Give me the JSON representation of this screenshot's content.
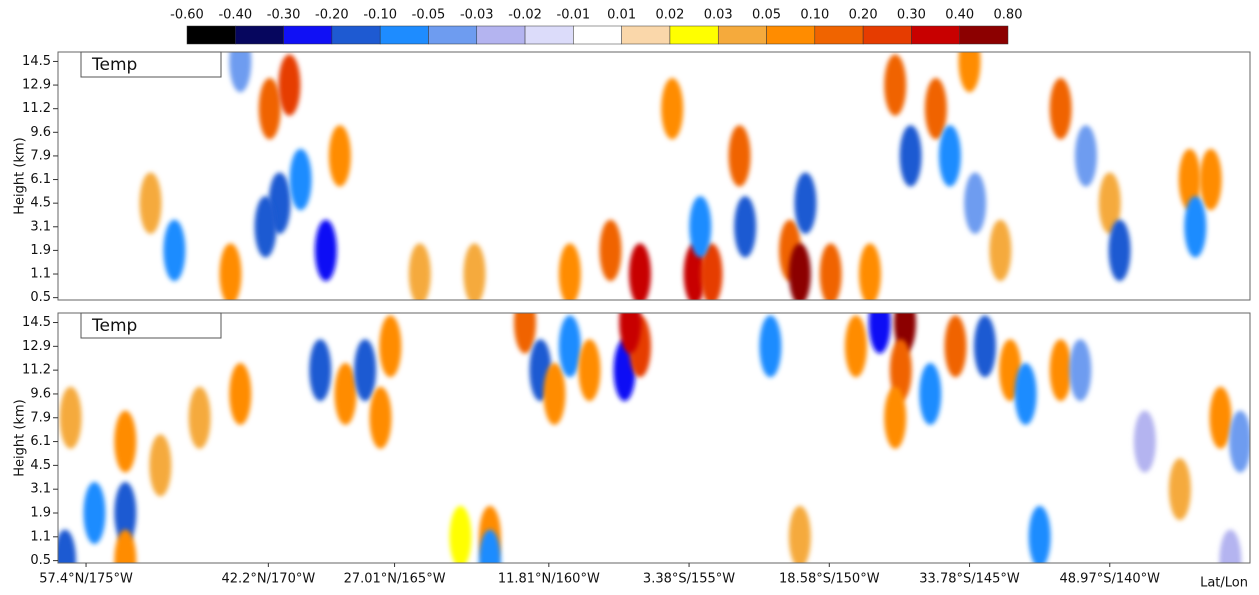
{
  "chart_data": [
    {
      "type": "contour",
      "label": "Temp",
      "ylabel": "Height (km)",
      "xlim": [
        0,
        8.5
      ],
      "ylim": [
        -0.1,
        10.4
      ],
      "yticks": [
        {
          "value": 0,
          "label": "0.5"
        },
        {
          "value": 1,
          "label": "1.1"
        },
        {
          "value": 2,
          "label": "1.9"
        },
        {
          "value": 3,
          "label": "3.1"
        },
        {
          "value": 4,
          "label": "4.5"
        },
        {
          "value": 5,
          "label": "6.1"
        },
        {
          "value": 6,
          "label": "7.9"
        },
        {
          "value": 7,
          "label": "9.6"
        },
        {
          "value": 8,
          "label": "11.2"
        },
        {
          "value": 9,
          "label": "12.9"
        },
        {
          "value": 10,
          "label": "14.5"
        }
      ],
      "colorbar": {
        "levels": [
          {
            "value": -0.6,
            "label": "-0.60"
          },
          {
            "value": -0.4,
            "label": "-0.40"
          },
          {
            "value": -0.3,
            "label": "-0.30"
          },
          {
            "value": -0.2,
            "label": "-0.20"
          },
          {
            "value": -0.1,
            "label": "-0.10"
          },
          {
            "value": -0.05,
            "label": "-0.05"
          },
          {
            "value": -0.03,
            "label": "-0.03"
          },
          {
            "value": -0.02,
            "label": "-0.02"
          },
          {
            "value": -0.01,
            "label": "-0.01"
          },
          {
            "value": 0.01,
            "label": "0.01"
          },
          {
            "value": 0.02,
            "label": "0.02"
          },
          {
            "value": 0.03,
            "label": "0.03"
          },
          {
            "value": 0.05,
            "label": "0.05"
          },
          {
            "value": 0.1,
            "label": "0.10"
          },
          {
            "value": 0.2,
            "label": "0.20"
          },
          {
            "value": 0.3,
            "label": "0.30"
          },
          {
            "value": 0.4,
            "label": "0.40"
          },
          {
            "value": 0.8,
            "label": "0.80"
          }
        ],
        "colors": [
          "#000000",
          "#06065e",
          "#1010f5",
          "#1e5ad2",
          "#1e8cff",
          "#6e9cf0",
          "#b4b4f0",
          "#dcdcfa",
          "#ffffff",
          "#fad7aa",
          "#ffff00",
          "#f5aa3c",
          "#ff8c00",
          "#f06400",
          "#e63c00",
          "#c80000",
          "#8c0000",
          "#500000"
        ]
      },
      "cells": [
        [
          0.66,
          4,
          0.04
        ],
        [
          0.83,
          2,
          -0.1
        ],
        [
          1.23,
          1,
          0.07
        ],
        [
          1.51,
          8,
          0.12
        ],
        [
          1.65,
          9,
          0.2
        ],
        [
          1.58,
          4,
          -0.2
        ],
        [
          1.48,
          3,
          -0.12
        ],
        [
          1.73,
          5,
          -0.08
        ],
        [
          1.91,
          2,
          -0.25
        ],
        [
          2.01,
          6,
          0.08
        ],
        [
          1.3,
          10,
          -0.04
        ],
        [
          2.58,
          1,
          0.03
        ],
        [
          2.97,
          1,
          0.04
        ],
        [
          3.65,
          1,
          0.08
        ],
        [
          3.94,
          2,
          0.12
        ],
        [
          4.15,
          1,
          0.3
        ],
        [
          4.38,
          8,
          0.07
        ],
        [
          4.54,
          1,
          0.35
        ],
        [
          4.66,
          1,
          0.2
        ],
        [
          4.58,
          3,
          -0.1
        ],
        [
          4.86,
          6,
          0.1
        ],
        [
          4.9,
          3,
          -0.15
        ],
        [
          5.22,
          2,
          0.1
        ],
        [
          5.29,
          1,
          0.45
        ],
        [
          5.33,
          4,
          -0.15
        ],
        [
          5.51,
          1,
          0.15
        ],
        [
          5.79,
          1,
          0.08
        ],
        [
          5.97,
          9,
          0.12
        ],
        [
          6.08,
          6,
          -0.15
        ],
        [
          6.26,
          8,
          0.15
        ],
        [
          6.36,
          6,
          -0.06
        ],
        [
          6.5,
          10,
          0.08
        ],
        [
          6.54,
          4,
          -0.05
        ],
        [
          6.72,
          2,
          0.04
        ],
        [
          7.15,
          8,
          0.1
        ],
        [
          7.33,
          6,
          -0.05
        ],
        [
          7.5,
          4,
          0.04
        ],
        [
          7.57,
          2,
          -0.2
        ],
        [
          8.07,
          5,
          0.08
        ],
        [
          8.22,
          5,
          0.07
        ],
        [
          8.11,
          3,
          -0.1
        ]
      ]
    },
    {
      "type": "contour",
      "label": "Temp",
      "ylabel": "Height (km)",
      "xlabel": "Lat/Lon",
      "xlim": [
        0,
        8.5
      ],
      "ylim": [
        -0.1,
        10.4
      ],
      "xticks": [
        {
          "value": 0.2,
          "label": "57.4°N/175°W"
        },
        {
          "value": 1.5,
          "label": "42.2°N/170°W"
        },
        {
          "value": 2.4,
          "label": "27.01°N/165°W"
        },
        {
          "value": 3.5,
          "label": "11.81°N/160°W"
        },
        {
          "value": 4.5,
          "label": "3.38°S/155°W"
        },
        {
          "value": 5.5,
          "label": "18.58°S/150°W"
        },
        {
          "value": 6.5,
          "label": "33.78°S/145°W"
        },
        {
          "value": 7.5,
          "label": "48.97°S/140°W"
        }
      ],
      "yticks": [
        {
          "value": 0,
          "label": "0.5"
        },
        {
          "value": 1,
          "label": "1.1"
        },
        {
          "value": 2,
          "label": "1.9"
        },
        {
          "value": 3,
          "label": "3.1"
        },
        {
          "value": 4,
          "label": "4.5"
        },
        {
          "value": 5,
          "label": "6.1"
        },
        {
          "value": 6,
          "label": "7.9"
        },
        {
          "value": 7,
          "label": "9.6"
        },
        {
          "value": 8,
          "label": "11.2"
        },
        {
          "value": 9,
          "label": "12.9"
        },
        {
          "value": 10,
          "label": "14.5"
        }
      ],
      "cells": [
        [
          0.09,
          6,
          0.04
        ],
        [
          0.05,
          0,
          -0.15
        ],
        [
          0.26,
          2,
          -0.1
        ],
        [
          0.48,
          2,
          -0.15
        ],
        [
          0.48,
          5,
          0.06
        ],
        [
          0.48,
          0,
          0.08
        ],
        [
          0.73,
          4,
          0.03
        ],
        [
          1.01,
          6,
          0.04
        ],
        [
          1.3,
          7,
          0.05
        ],
        [
          1.87,
          8,
          -0.15
        ],
        [
          2.05,
          7,
          0.08
        ],
        [
          2.19,
          8,
          -0.2
        ],
        [
          2.3,
          6,
          0.05
        ],
        [
          2.37,
          9,
          0.06
        ],
        [
          2.87,
          1,
          0.02
        ],
        [
          3.08,
          1,
          0.08
        ],
        [
          3.08,
          0,
          -0.06
        ],
        [
          3.33,
          10,
          0.1
        ],
        [
          3.44,
          8,
          -0.12
        ],
        [
          3.54,
          7,
          0.06
        ],
        [
          3.65,
          9,
          -0.1
        ],
        [
          3.79,
          8,
          0.05
        ],
        [
          4.04,
          8,
          -0.25
        ],
        [
          4.15,
          9,
          0.2
        ],
        [
          4.08,
          10,
          0.3
        ],
        [
          5.08,
          9,
          -0.08
        ],
        [
          5.29,
          1,
          0.03
        ],
        [
          5.69,
          9,
          0.07
        ],
        [
          5.86,
          10,
          -0.3
        ],
        [
          6.04,
          10,
          0.45
        ],
        [
          6.01,
          8,
          0.15
        ],
        [
          5.97,
          6,
          0.05
        ],
        [
          6.22,
          7,
          -0.1
        ],
        [
          6.4,
          9,
          0.1
        ],
        [
          6.61,
          9,
          -0.12
        ],
        [
          6.79,
          8,
          0.07
        ],
        [
          6.9,
          7,
          -0.1
        ],
        [
          7.15,
          8,
          0.05
        ],
        [
          7.29,
          8,
          -0.05
        ],
        [
          7.75,
          5,
          -0.03
        ],
        [
          8.0,
          3,
          0.04
        ],
        [
          8.29,
          6,
          0.06
        ],
        [
          8.43,
          5,
          -0.05
        ],
        [
          8.36,
          0,
          -0.03
        ],
        [
          7.0,
          1,
          -0.1
        ]
      ]
    }
  ]
}
